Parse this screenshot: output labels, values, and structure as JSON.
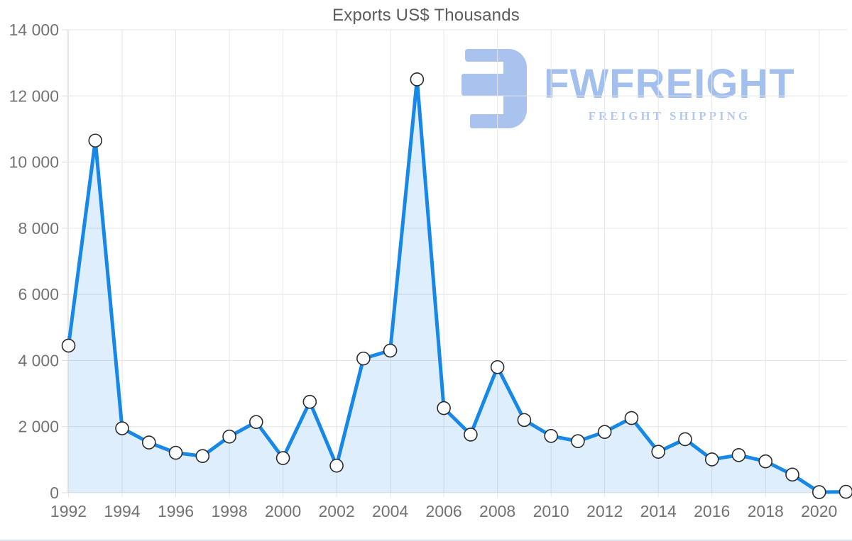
{
  "watermark": {
    "brand": "FWFREIGHT",
    "tagline": "FREIGHT SHIPPING",
    "mark_color": "#a9c3ee"
  },
  "chart_data": {
    "type": "area",
    "title": "Exports US$ Thousands",
    "xlabel": "",
    "ylabel": "",
    "x": [
      1992,
      1993,
      1994,
      1995,
      1996,
      1997,
      1998,
      1999,
      2000,
      2001,
      2002,
      2003,
      2004,
      2005,
      2006,
      2007,
      2008,
      2009,
      2010,
      2011,
      2012,
      2013,
      2014,
      2015,
      2016,
      2017,
      2018,
      2019,
      2020,
      2021
    ],
    "values": [
      4450,
      10650,
      1950,
      1520,
      1210,
      1110,
      1700,
      2140,
      1050,
      2750,
      820,
      4060,
      4300,
      12500,
      2560,
      1760,
      3800,
      2200,
      1720,
      1560,
      1840,
      2260,
      1240,
      1620,
      1010,
      1140,
      950,
      550,
      20,
      30
    ],
    "ylim": [
      0,
      14000
    ],
    "ytick_step": 2000,
    "xticks": [
      1992,
      1994,
      1996,
      1998,
      2000,
      2002,
      2004,
      2006,
      2008,
      2010,
      2012,
      2014,
      2016,
      2018,
      2020
    ],
    "grid": true,
    "legend": false,
    "colors": {
      "line": "#1787e8",
      "area_fill": "rgba(23,135,232,0.14)",
      "marker_fill": "#ffffff",
      "marker_stroke": "#2b2b2b",
      "grid": "#e6e6e6",
      "axis_line": "#dcdcdc",
      "tick_text": "#737373",
      "title_text": "#5c5c5c"
    }
  }
}
